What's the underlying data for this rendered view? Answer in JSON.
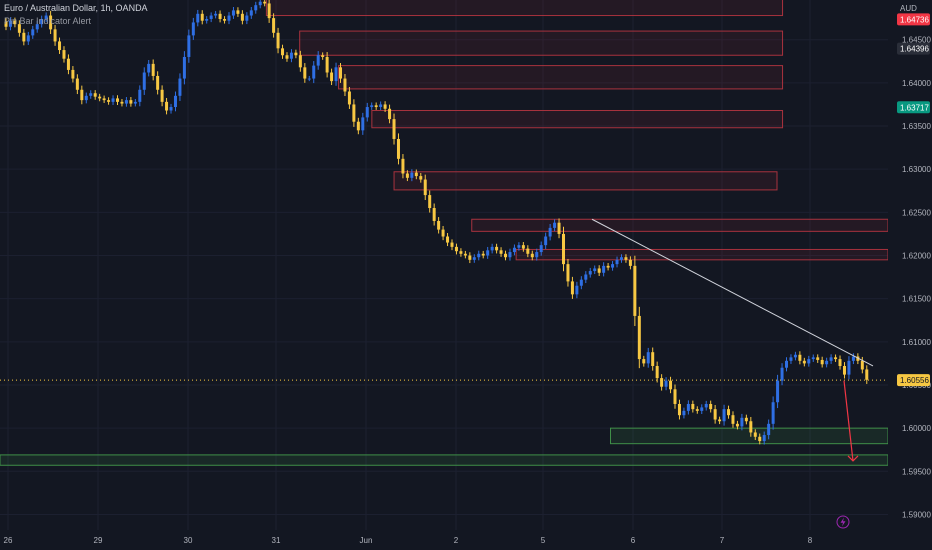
{
  "chart_data": {
    "type": "candlestick",
    "title": "Euro / Australian Dollar, 1h, OANDA",
    "indicator": "Pin Bar Indicator Alert",
    "currency": "AUD",
    "y_ticks": [
      "1.64500",
      "1.64000",
      "1.63500",
      "1.63000",
      "1.62500",
      "1.62000",
      "1.61500",
      "1.61000",
      "1.60500",
      "1.60000",
      "1.59500",
      "1.59000"
    ],
    "y_values": [
      1.645,
      1.64,
      1.635,
      1.63,
      1.625,
      1.62,
      1.615,
      1.61,
      1.605,
      1.6,
      1.595,
      1.59
    ],
    "ylim": [
      1.5882,
      1.6496
    ],
    "x_ticks": [
      "26",
      "29",
      "30",
      "31",
      "Jun",
      "2",
      "5",
      "6",
      "7",
      "8"
    ],
    "price_badges": [
      {
        "label": "1.64736",
        "value": 1.64736,
        "color": "#f23645"
      },
      {
        "label": "1.64396",
        "value": 1.64396,
        "color": "#2a2e39"
      },
      {
        "label": "1.63717",
        "value": 1.63717,
        "color": "#089981"
      },
      {
        "label": "1.60556",
        "value": 1.60556,
        "color": "#f7c843"
      }
    ],
    "current_price": 1.60556,
    "closes": [
      1.6465,
      1.6472,
      1.6468,
      1.6458,
      1.6448,
      1.6455,
      1.6462,
      1.6468,
      1.6474,
      1.6478,
      1.6462,
      1.6448,
      1.6438,
      1.6428,
      1.6415,
      1.6405,
      1.6392,
      1.638,
      1.6385,
      1.6388,
      1.6384,
      1.6382,
      1.638,
      1.6378,
      1.6382,
      1.6378,
      1.6376,
      1.638,
      1.6376,
      1.6378,
      1.6392,
      1.6412,
      1.6422,
      1.6408,
      1.6392,
      1.6378,
      1.6368,
      1.6372,
      1.6385,
      1.6405,
      1.643,
      1.6455,
      1.647,
      1.648,
      1.6472,
      1.6474,
      1.6478,
      1.648,
      1.6474,
      1.6472,
      1.6478,
      1.6484,
      1.648,
      1.6472,
      1.6478,
      1.6484,
      1.649,
      1.6494,
      1.6492,
      1.6475,
      1.6458,
      1.644,
      1.6432,
      1.6428,
      1.6435,
      1.6432,
      1.6418,
      1.6405,
      1.6405,
      1.642,
      1.6432,
      1.643,
      1.6412,
      1.6402,
      1.6418,
      1.6405,
      1.639,
      1.6375,
      1.6355,
      1.6345,
      1.636,
      1.6372,
      1.6374,
      1.6372,
      1.6375,
      1.637,
      1.6358,
      1.6335,
      1.6312,
      1.6295,
      1.629,
      1.6296,
      1.6292,
      1.6288,
      1.627,
      1.6255,
      1.624,
      1.623,
      1.6222,
      1.6215,
      1.621,
      1.6205,
      1.6202,
      1.62,
      1.6195,
      1.6198,
      1.6202,
      1.62,
      1.6206,
      1.621,
      1.6206,
      1.6202,
      1.6198,
      1.6204,
      1.6209,
      1.6212,
      1.6208,
      1.6202,
      1.6198,
      1.6204,
      1.6212,
      1.6222,
      1.6232,
      1.6238,
      1.6225,
      1.619,
      1.617,
      1.6155,
      1.6165,
      1.6172,
      1.6178,
      1.6182,
      1.6185,
      1.618,
      1.6188,
      1.6186,
      1.619,
      1.6195,
      1.6198,
      1.6195,
      1.6188,
      1.613,
      1.608,
      1.6075,
      1.6088,
      1.6072,
      1.6058,
      1.6048,
      1.6055,
      1.6045,
      1.6028,
      1.6015,
      1.602,
      1.6028,
      1.6022,
      1.602,
      1.6024,
      1.6028,
      1.6022,
      1.601,
      1.6008,
      1.6022,
      1.6015,
      1.6005,
      1.6002,
      1.6012,
      1.6008,
      1.5995,
      1.599,
      1.5985,
      1.5992,
      1.6005,
      1.603,
      1.6055,
      1.607,
      1.6078,
      1.6082,
      1.6085,
      1.6078,
      1.6075,
      1.608,
      1.6082,
      1.6079,
      1.6074,
      1.6078,
      1.6082,
      1.608,
      1.6072,
      1.6062,
      1.6078,
      1.6083,
      1.6078,
      1.6068,
      1.6056
    ],
    "zones": [
      {
        "type": "supply",
        "top": 1.6505,
        "bottom": 1.6478,
        "from": 48,
        "to": 141
      },
      {
        "type": "supply",
        "top": 1.646,
        "bottom": 1.6432,
        "from": 54,
        "to": 141
      },
      {
        "type": "supply",
        "top": 1.642,
        "bottom": 1.6393,
        "from": 61,
        "to": 141
      },
      {
        "type": "supply",
        "top": 1.6368,
        "bottom": 1.6348,
        "from": 67,
        "to": 141
      },
      {
        "type": "supply",
        "top": 1.6297,
        "bottom": 1.6276,
        "from": 71,
        "to": 140
      },
      {
        "type": "supply",
        "top": 1.6242,
        "bottom": 1.6228,
        "from": 85,
        "to": 160
      },
      {
        "type": "supply",
        "top": 1.6207,
        "bottom": 1.6195,
        "from": 93,
        "to": 160
      },
      {
        "type": "demand",
        "top": 1.6,
        "bottom": 1.5982,
        "from": 110,
        "to": 160
      },
      {
        "type": "demand",
        "top": 1.5969,
        "bottom": 1.5957,
        "from": 0,
        "to": 160
      }
    ],
    "trendline": {
      "from_price": 1.6242,
      "to_price": 1.6072
    },
    "arrow": {
      "from_price": 1.6055,
      "to_price": 1.5962
    }
  }
}
